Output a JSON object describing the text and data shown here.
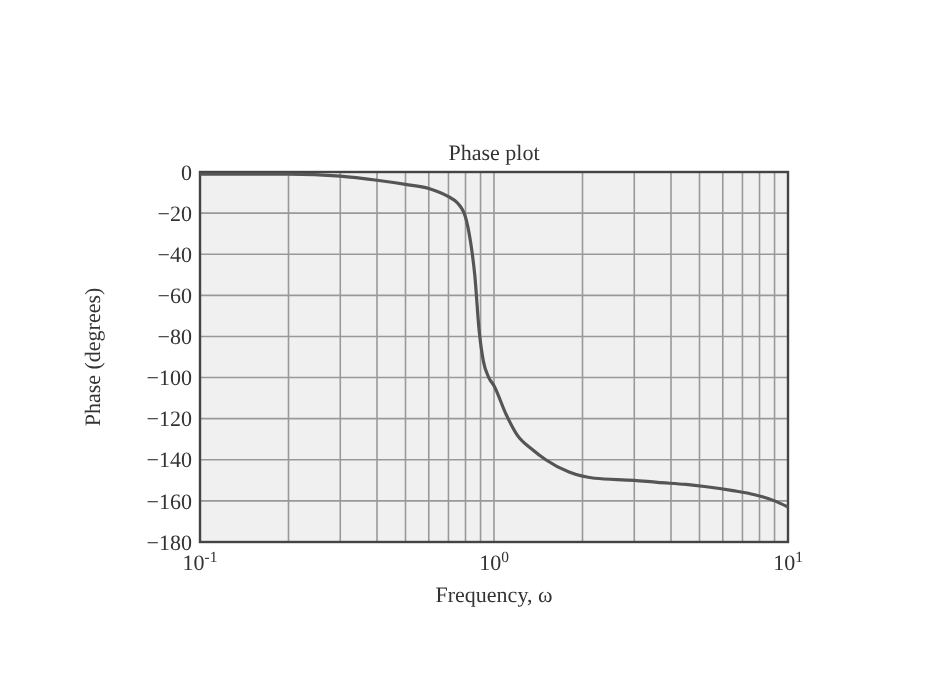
{
  "chart_data": {
    "type": "line",
    "title": "Phase plot",
    "xlabel": "Frequency, ω",
    "ylabel": "Phase (degrees)",
    "log": "x",
    "grid": true,
    "marker": "none",
    "line_style": "solid",
    "xlim": [
      0.1,
      10
    ],
    "ylim": [
      -180,
      0
    ],
    "xticks": [
      {
        "value": 0.1,
        "label": "10$^{-1}$"
      },
      {
        "value": 0.2,
        "label": null
      },
      {
        "value": 0.3,
        "label": null
      },
      {
        "value": 0.4,
        "label": null
      },
      {
        "value": 0.5,
        "label": null
      },
      {
        "value": 0.6,
        "label": null
      },
      {
        "value": 0.7,
        "label": null
      },
      {
        "value": 0.8,
        "label": null
      },
      {
        "value": 0.9,
        "label": null
      },
      {
        "value": 1,
        "label": "10$^{0}$"
      },
      {
        "value": 2,
        "label": null
      },
      {
        "value": 3,
        "label": null
      },
      {
        "value": 4,
        "label": null
      },
      {
        "value": 5,
        "label": null
      },
      {
        "value": 6,
        "label": null
      },
      {
        "value": 7,
        "label": null
      },
      {
        "value": 8,
        "label": null
      },
      {
        "value": 9,
        "label": null
      },
      {
        "value": 10,
        "label": "10$^{1}$"
      }
    ],
    "yticks": [
      0,
      -20,
      -40,
      -60,
      -80,
      -100,
      -120,
      -140,
      -160,
      -180
    ],
    "series": [
      {
        "color": "#555555",
        "x": [
          0.1,
          0.2,
          0.3,
          0.4,
          0.5,
          0.6,
          0.7,
          0.75,
          0.8,
          0.83,
          0.86,
          0.89,
          0.92,
          0.96,
          1,
          1.1,
          1.2,
          1.35,
          1.5,
          1.8,
          2.2,
          3,
          3.6,
          4.5,
          5.2,
          6.5,
          7.7,
          9,
          10
        ],
        "values": [
          -1,
          -1,
          -2,
          -4,
          -6,
          -8,
          -12,
          -15,
          -22,
          -33,
          -50,
          -77,
          -92,
          -100,
          -104,
          -118,
          -128,
          -135,
          -140,
          -146,
          -149,
          -150,
          -151,
          -152,
          -153,
          -155,
          -157,
          -160,
          -163
        ]
      }
    ]
  }
}
